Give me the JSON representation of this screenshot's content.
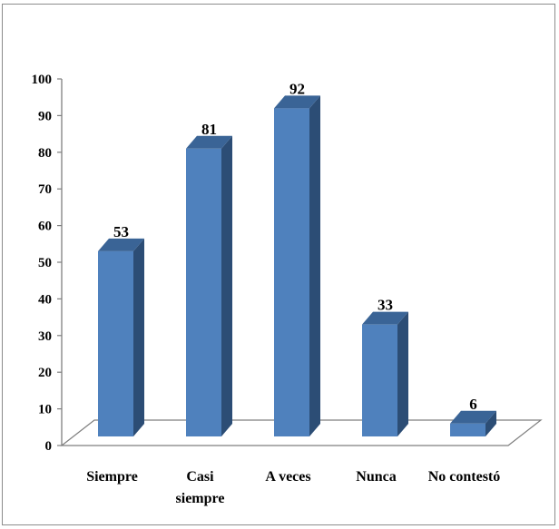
{
  "chart_data": {
    "type": "bar",
    "style": "3d-column",
    "title": "",
    "xlabel": "",
    "ylabel": "",
    "categories": [
      [
        "Siempre"
      ],
      [
        "Casi",
        "siempre"
      ],
      [
        "A veces"
      ],
      [
        "Nunca"
      ],
      [
        "No contestó"
      ]
    ],
    "values": [
      53,
      81,
      92,
      33,
      6
    ],
    "ylim": [
      0,
      100
    ],
    "yticks": [
      0,
      10,
      20,
      30,
      40,
      50,
      60,
      70,
      80,
      90,
      100
    ],
    "grid": false,
    "legend": "none",
    "colors": {
      "bar_front": "#4f81bd",
      "bar_side": "#2c4d75",
      "bar_top": "#3a6496",
      "axis": "#7f7f7f"
    }
  }
}
